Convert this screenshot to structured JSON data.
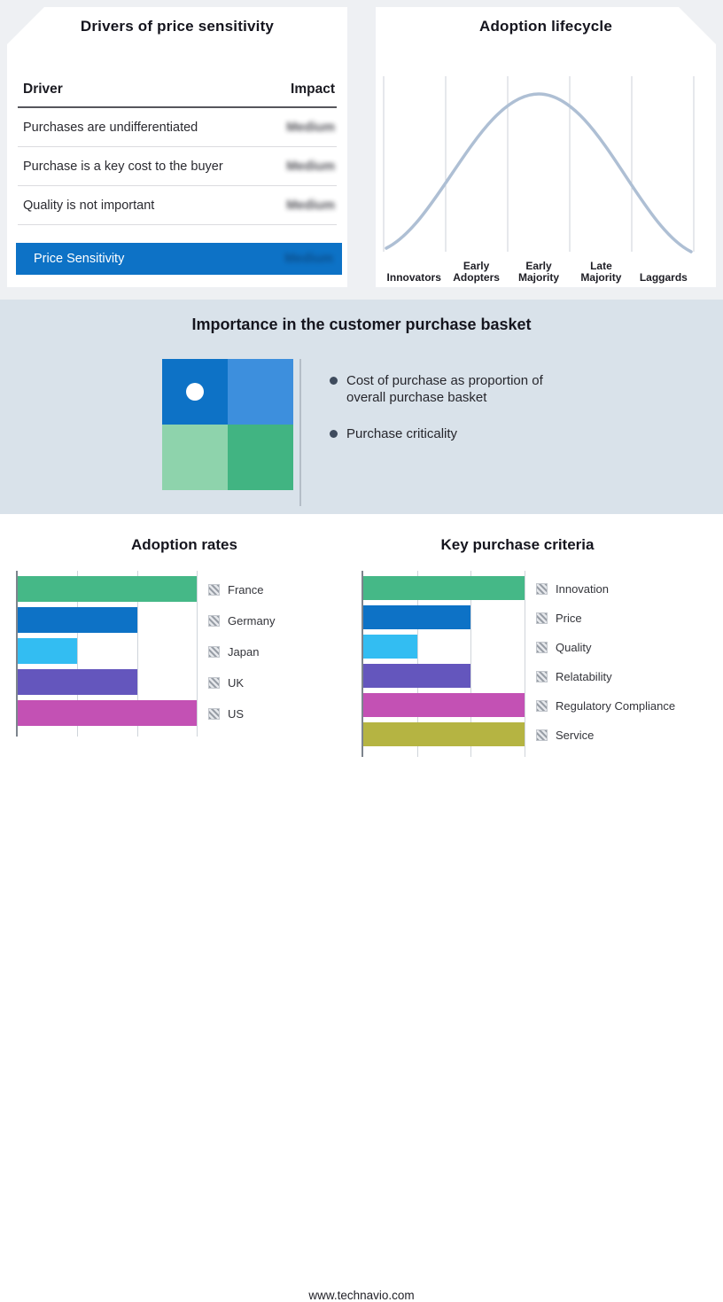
{
  "page": {
    "footer_url": "www.technavio.com"
  },
  "palette": {
    "top_background": "#eef0f3",
    "band_background": "#d9e2ea",
    "highlight_blue": "#0d72c6",
    "curve_color": "#aebfd4"
  },
  "basket_panel": {
    "title": "Importance in the customer purchase basket",
    "bullets": [
      "Cost of purchase as proportion of overall purchase basket",
      "Purchase criticality"
    ],
    "quadrant_colors": {
      "top_left": "#0d72c6",
      "top_right": "#3d8fdd",
      "bottom_left": "#8ed3ac",
      "bottom_right": "#41b482"
    },
    "background_color": "#d9e2ea"
  },
  "chart_data": [
    {
      "type": "table",
      "title": "Drivers of price sensitivity",
      "columns": [
        "Driver",
        "Impact"
      ],
      "rows": [
        [
          "Purchases are undifferentiated",
          "Medium"
        ],
        [
          "Purchase is a key cost to the buyer",
          "Medium"
        ],
        [
          "Quality is not important",
          "Medium"
        ]
      ],
      "highlight_row": [
        "Price Sensitivity",
        "Medium"
      ],
      "highlight_color": "#0d72c6",
      "note": "Impact values are shown blurred/redacted in the source image"
    },
    {
      "type": "line",
      "title": "Adoption lifecycle",
      "categories": [
        "Innovators",
        "Early Adopters",
        "Early Majority",
        "Late Majority",
        "Laggards"
      ],
      "shape": "bell curve peaking over Early Majority",
      "x": [
        0,
        0.1,
        0.2,
        0.3,
        0.4,
        0.5,
        0.6,
        0.7,
        0.8,
        0.9,
        1
      ],
      "y": [
        0.02,
        0.08,
        0.25,
        0.55,
        0.85,
        1.0,
        0.85,
        0.55,
        0.25,
        0.08,
        0.02
      ],
      "color": "#aebfd4",
      "grid": true
    },
    {
      "type": "bar",
      "orientation": "horizontal",
      "title": "Adoption rates",
      "categories": [
        "France",
        "Germany",
        "Japan",
        "UK",
        "US"
      ],
      "values": [
        3,
        2,
        1,
        2,
        3
      ],
      "xlim": [
        0,
        3
      ],
      "colors": [
        "#45b887",
        "#0d72c6",
        "#33bdf2",
        "#6456bd",
        "#c351b4"
      ],
      "legend_position": "right",
      "grid": true
    },
    {
      "type": "bar",
      "orientation": "horizontal",
      "title": "Key purchase criteria",
      "categories": [
        "Innovation",
        "Price",
        "Quality",
        "Relatability",
        "Regulatory Compliance",
        "Service"
      ],
      "values": [
        3,
        2,
        1,
        2,
        3,
        3
      ],
      "xlim": [
        0,
        3
      ],
      "colors": [
        "#45b887",
        "#0d72c6",
        "#33bdf2",
        "#6456bd",
        "#c351b4",
        "#b5b442"
      ],
      "legend_position": "right",
      "grid": true
    }
  ]
}
